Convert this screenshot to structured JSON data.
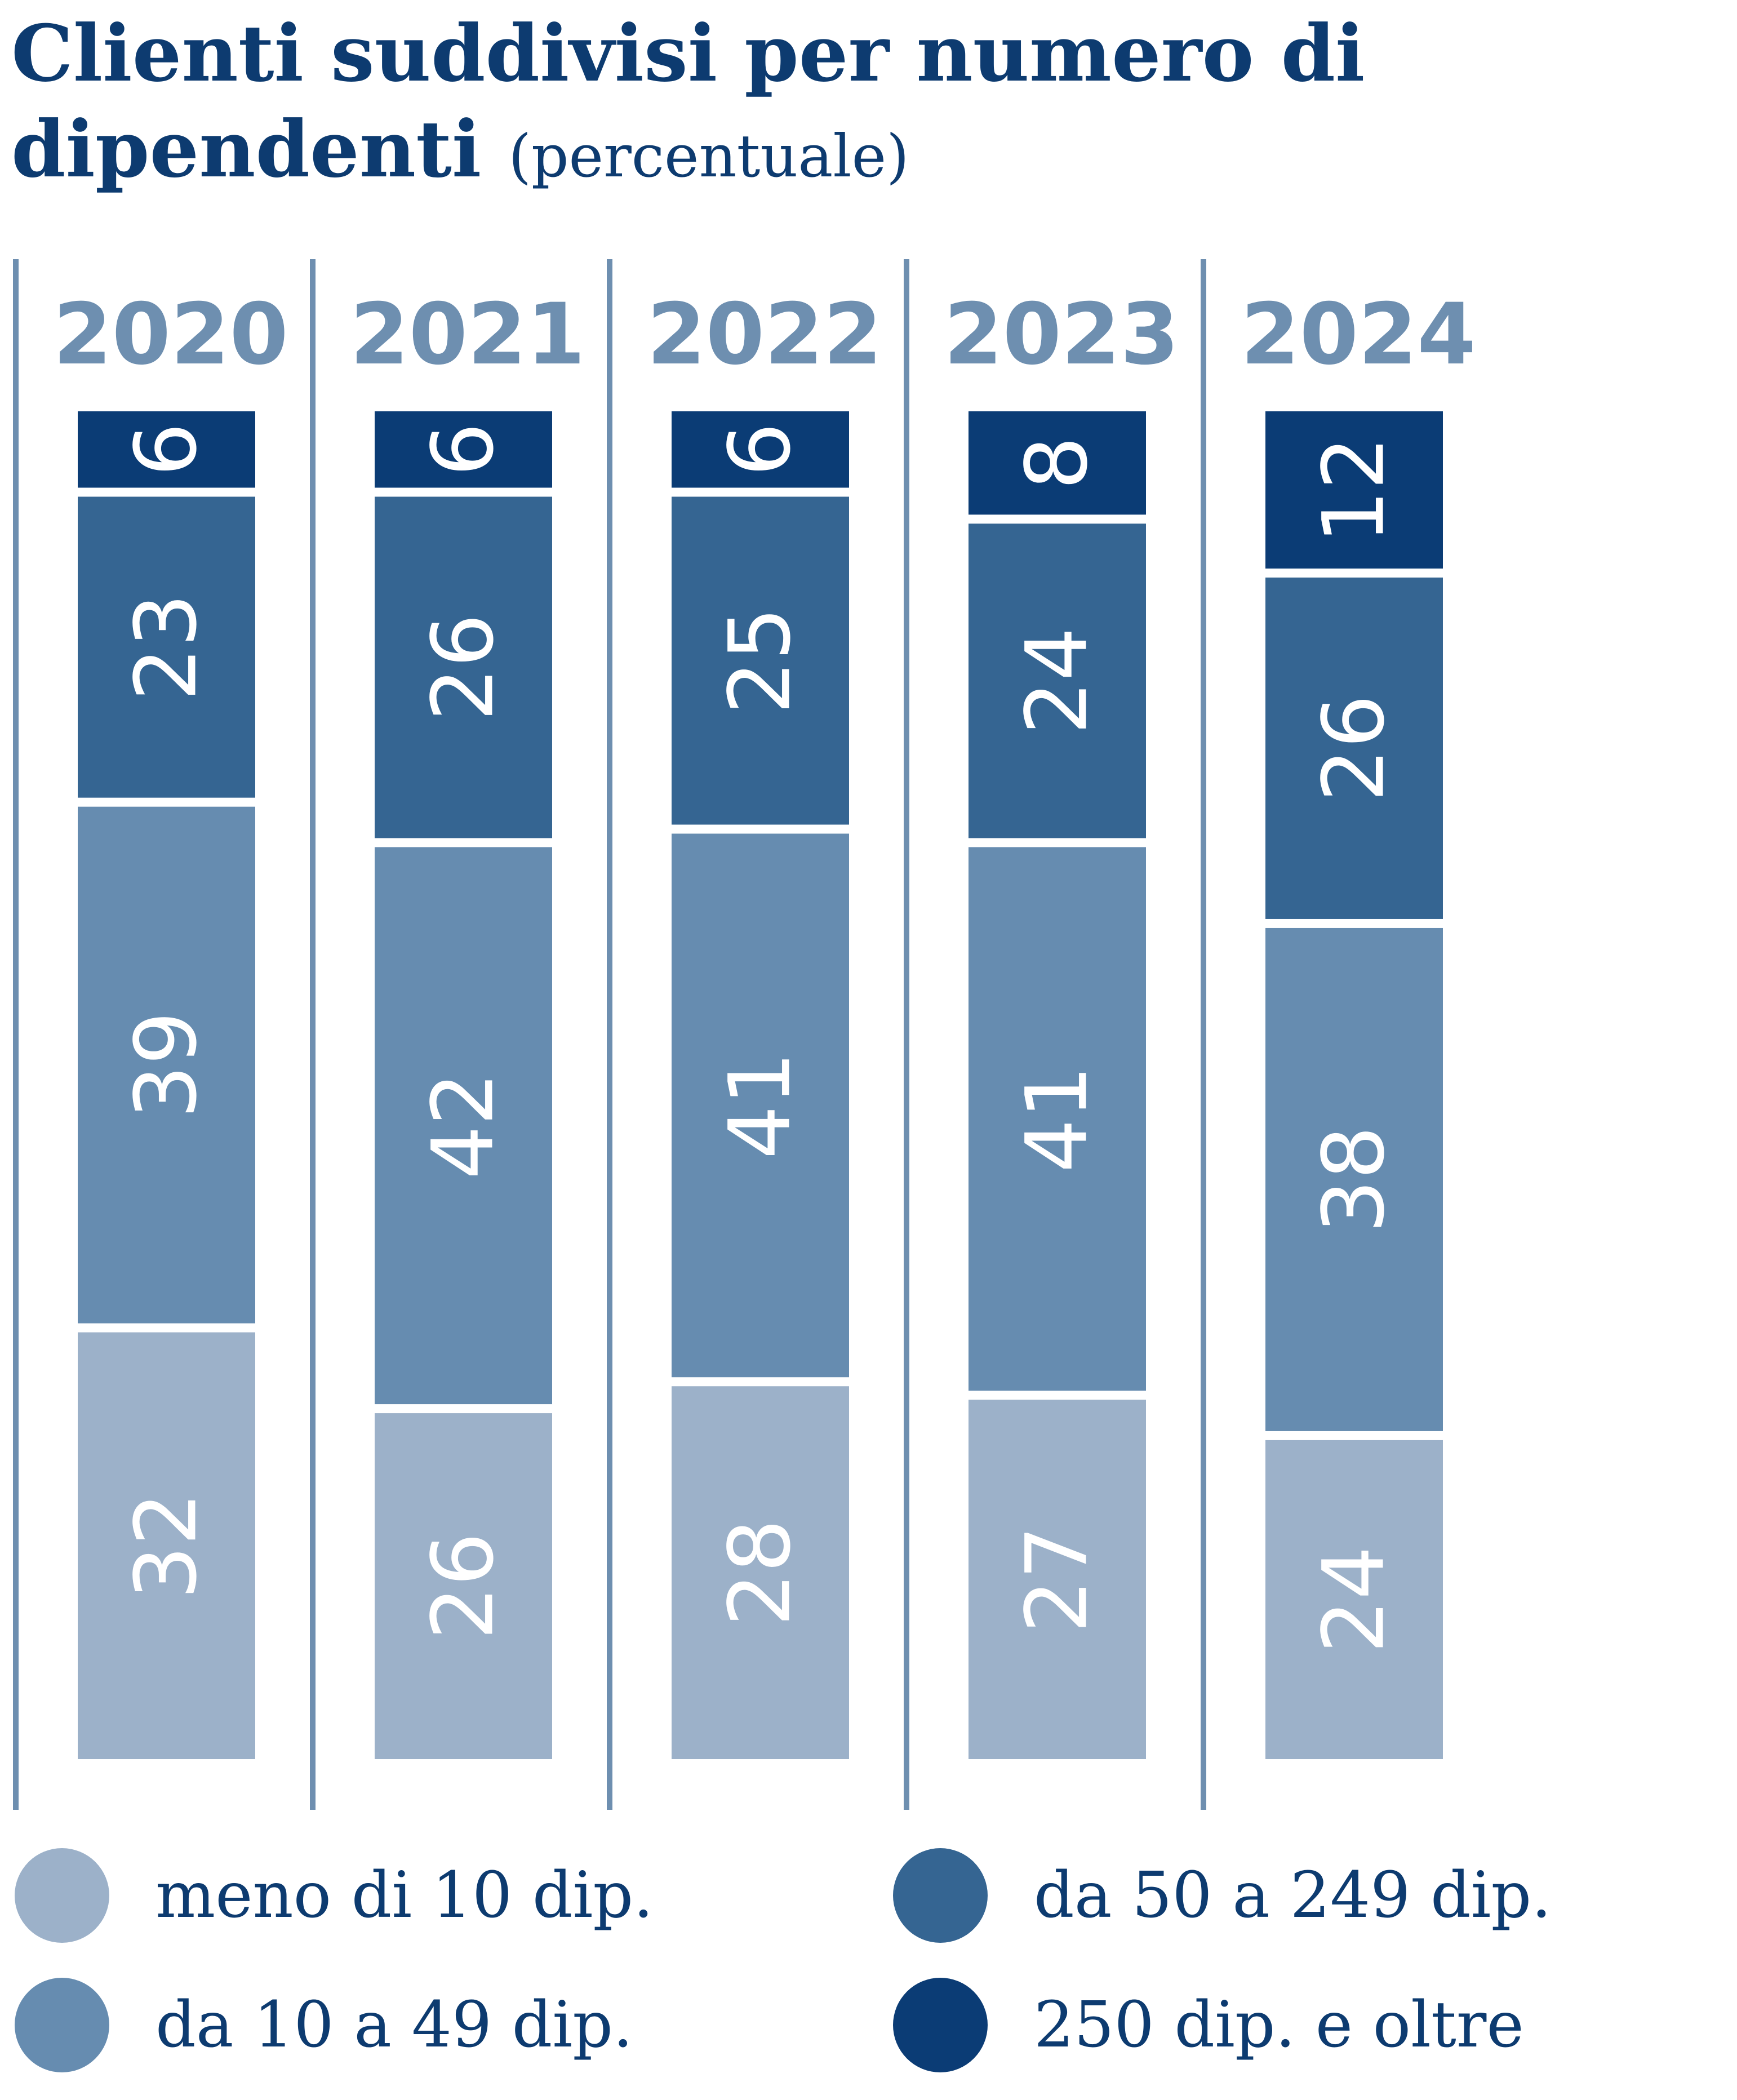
{
  "title": {
    "main": "Clienti suddivisi per numero di dipendenti",
    "unit": "(percentuale)"
  },
  "colors": {
    "meno_10": "#9cb1c9",
    "da_10_49": "#668cb0",
    "da_50_249": "#356592",
    "oltre_250": "#0b3c75",
    "year_label": "#6e8fb0",
    "divider": "#6e8fb0",
    "text_dark": "#0d3b70",
    "segment_text": "#ffffff"
  },
  "legend": [
    {
      "label": "meno di 10 dip.",
      "color": "#9cb1c9"
    },
    {
      "label": "da 50 a 249 dip.",
      "color": "#356592"
    },
    {
      "label": "da 10 a 49 dip.",
      "color": "#668cb0"
    },
    {
      "label": "250 dip. e oltre",
      "color": "#0b3c75"
    }
  ],
  "chart_data": {
    "type": "bar",
    "stacked": true,
    "orientation": "vertical",
    "categories": [
      "2020",
      "2021",
      "2022",
      "2023",
      "2024"
    ],
    "series": [
      {
        "name": "meno di 10 dip.",
        "color": "#9cb1c9",
        "values": [
          32,
          26,
          28,
          27,
          24
        ]
      },
      {
        "name": "da 10 a 49 dip.",
        "color": "#668cb0",
        "values": [
          39,
          42,
          41,
          41,
          38
        ]
      },
      {
        "name": "da 50 a 249 dip.",
        "color": "#356592",
        "values": [
          23,
          26,
          25,
          24,
          26
        ]
      },
      {
        "name": "250 dip. e oltre",
        "color": "#0b3c75",
        "values": [
          6,
          6,
          6,
          8,
          12
        ]
      }
    ],
    "title": "Clienti suddivisi per numero di dipendenti",
    "unit": "(percentuale)",
    "xlabel": "",
    "ylabel": "",
    "ylim": [
      0,
      100
    ],
    "data_labels": true,
    "data_label_rotation": "vertical",
    "grid": false,
    "legend_position": "bottom"
  }
}
